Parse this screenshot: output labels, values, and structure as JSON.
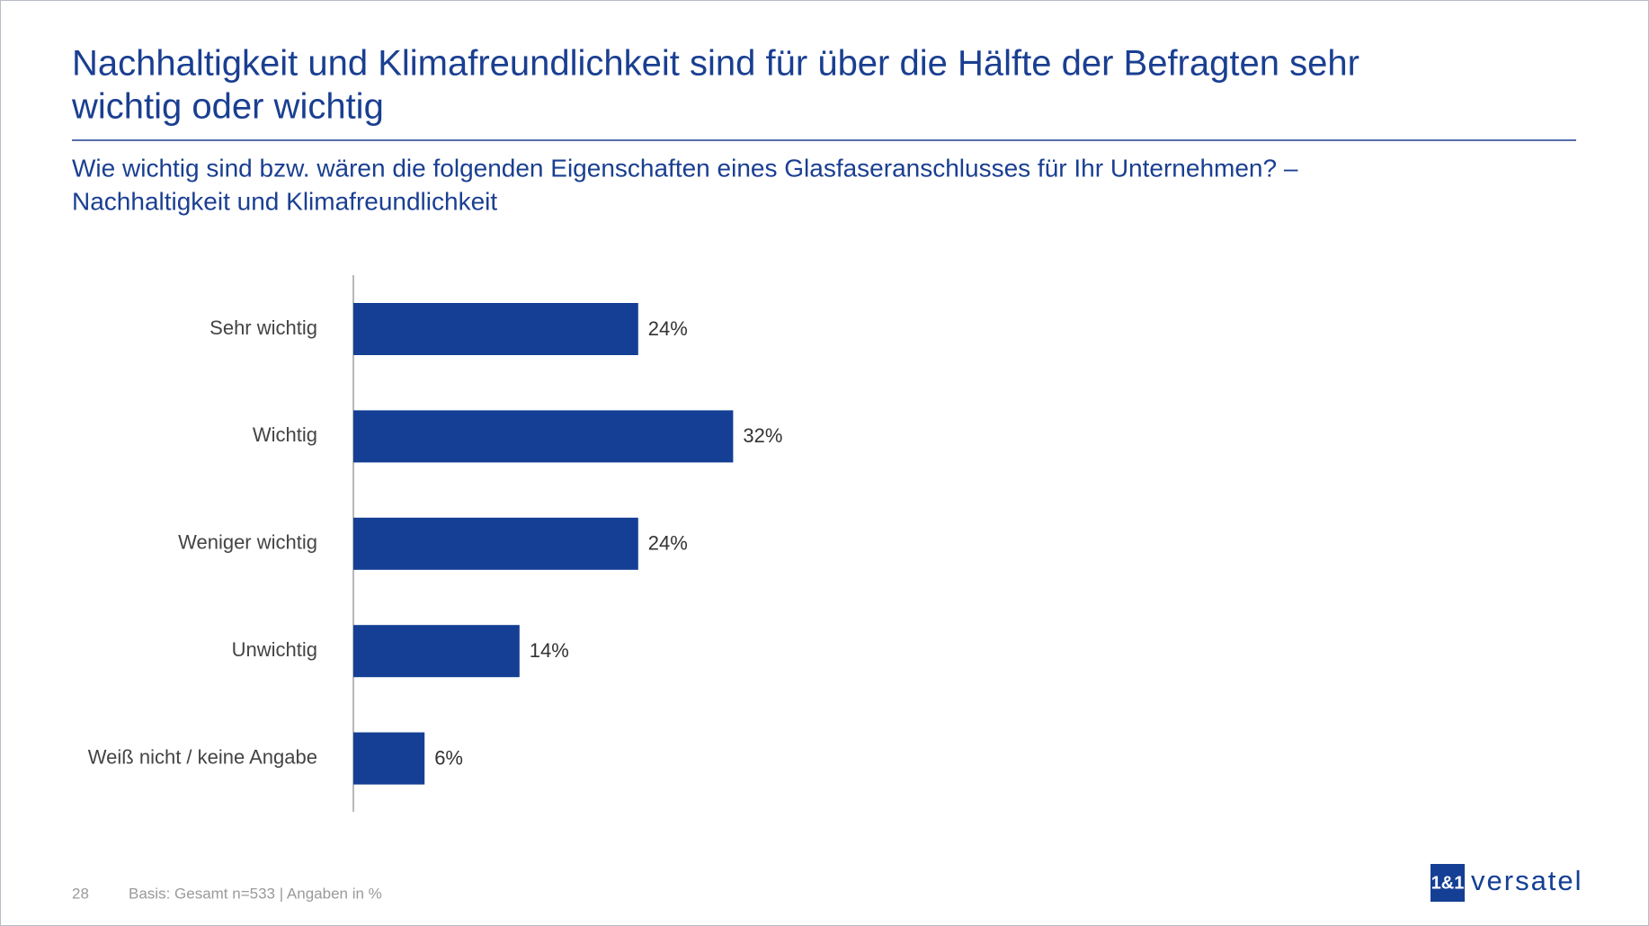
{
  "chart_data": {
    "type": "bar",
    "orientation": "horizontal",
    "title": [
      "Nachhaltigkeit und Klimafreundlichkeit sind für über die Hälfte der Befragten sehr",
      "wichtig oder wichtig"
    ],
    "subtitle": [
      "Wie wichtig sind bzw. wären die folgenden Eigenschaften eines Glasfaseranschlusses für Ihr Unternehmen? –",
      "Nachhaltigkeit und Klimafreundlichkeit"
    ],
    "categories": [
      "Sehr wichtig",
      "Wichtig",
      "Weniger wichtig",
      "Unwichtig",
      "Weiß nicht / keine Angabe"
    ],
    "values": [
      24,
      32,
      24,
      14,
      6
    ],
    "value_labels": [
      "24%",
      "32%",
      "24%",
      "14%",
      "6%"
    ],
    "color": "#143f94"
  },
  "footer": {
    "page": "28",
    "note": "Basis: Gesamt n=533 | Angaben in %"
  },
  "logo": {
    "mark": "1&1",
    "name": "versatel"
  }
}
